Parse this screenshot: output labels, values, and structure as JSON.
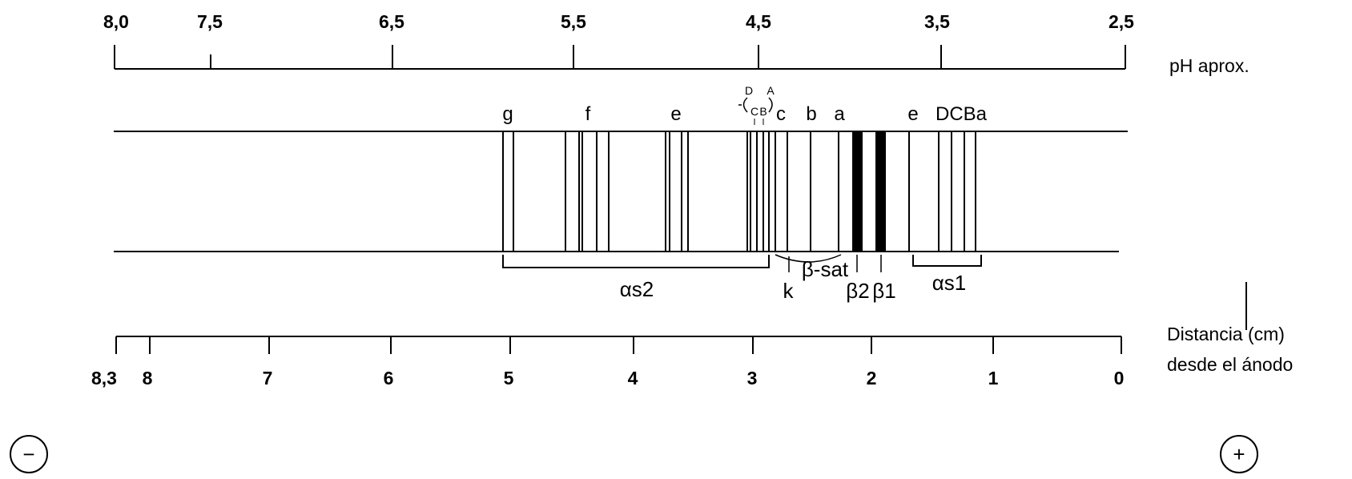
{
  "ph_axis": {
    "title": "pH aprox.",
    "ticks": [
      "8,0",
      "7,5",
      "6,5",
      "5,5",
      "4,5",
      "3,5",
      "2,5"
    ]
  },
  "distance_axis": {
    "title_line1": "Distancia (cm)",
    "title_line2": "desde el ánodo",
    "ticks": [
      "8,3",
      "8",
      "7",
      "6",
      "5",
      "4",
      "3",
      "2",
      "1",
      "0"
    ]
  },
  "band_letters": {
    "g": "g",
    "f": "f",
    "e2": "e",
    "d_small": "D",
    "c_small": "C",
    "b_small": "B",
    "a_small": "A",
    "c": "c",
    "b": "b",
    "a": "a",
    "e1": "e",
    "dcba": "DCBa"
  },
  "groups": {
    "as2": "αs2",
    "bsat": "β-sat",
    "k": "k",
    "b2": "β2",
    "b1": "β1",
    "as1": "αs1"
  },
  "electrodes": {
    "cathode": "−",
    "anode": "+"
  }
}
